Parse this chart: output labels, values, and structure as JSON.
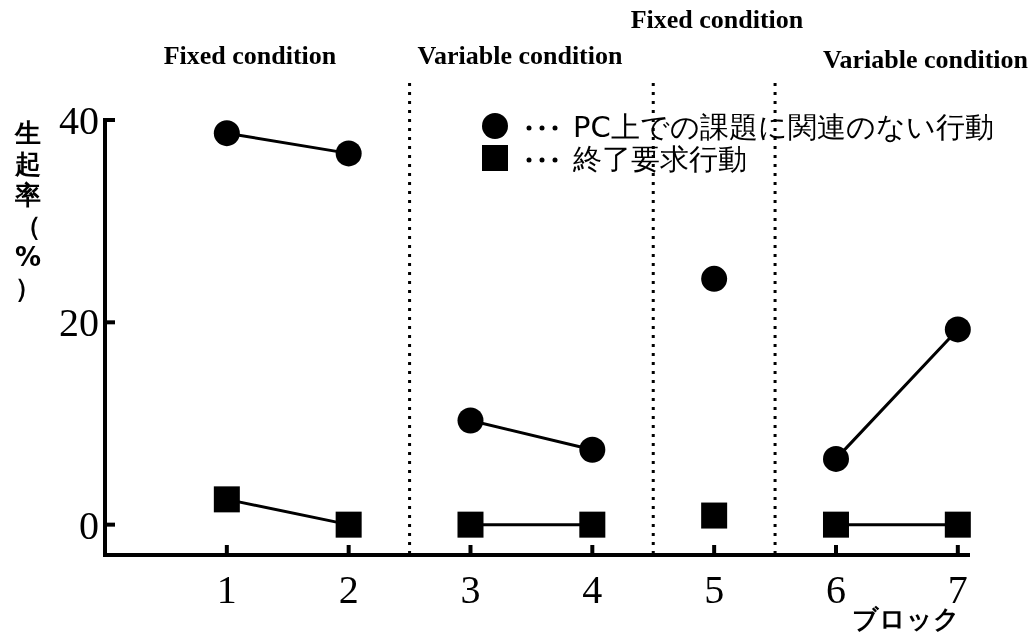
{
  "chart_data": {
    "type": "line",
    "xlabel": "ブロック",
    "ylabel": "生起率（%）",
    "series": [
      {
        "name": "PC上での課題に関連のない行動",
        "color": "#000000",
        "marker": "circle",
        "values": [
          38.7,
          36.7,
          null,
          10.3,
          7.4,
          null,
          24.3,
          null,
          6.5,
          19.3
        ],
        "x": [
          1,
          2,
          null,
          3,
          4,
          null,
          5,
          null,
          6,
          7
        ]
      },
      {
        "name": "終了要求行動",
        "color": "#000000",
        "marker": "square",
        "values": [
          2.5,
          0,
          null,
          0,
          0,
          null,
          0.9,
          null,
          0,
          0
        ],
        "x": [
          1,
          2,
          null,
          3,
          4,
          null,
          5,
          null,
          6,
          7
        ]
      }
    ],
    "xlim": [
      0,
      7.1
    ],
    "xticks": [
      1,
      2,
      3,
      4,
      5,
      6,
      7
    ],
    "ylim": [
      -3,
      40
    ],
    "yticks": [
      0,
      20,
      40
    ],
    "ref_lines": [
      {
        "axis": "x",
        "value": 2.5,
        "line_style": "dotted",
        "color": "#000000"
      },
      {
        "axis": "x",
        "value": 4.5,
        "line_style": "dotted",
        "color": "#000000"
      },
      {
        "axis": "x",
        "value": 5.5,
        "line_style": "dotted",
        "color": "#000000"
      }
    ],
    "annotations": [
      "Fixed condition",
      "Variable condition",
      "Fixed condition",
      "Variable condition"
    ],
    "grid": false,
    "legend": "top right",
    "line_style": "solid"
  }
}
